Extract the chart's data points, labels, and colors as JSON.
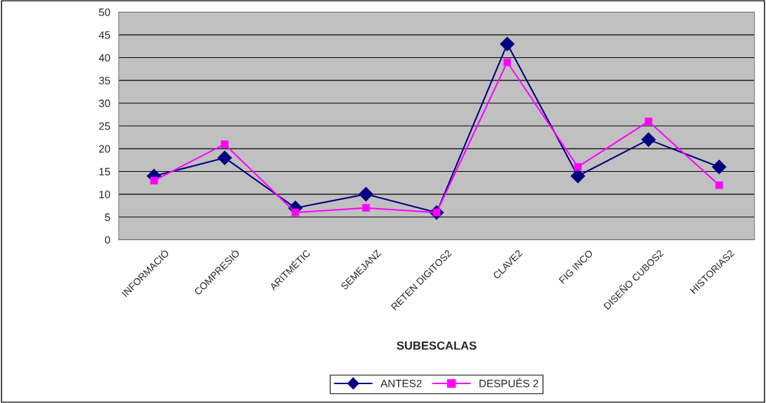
{
  "chart_data": {
    "type": "line",
    "xlabel": "SUBESCALAS",
    "categories": [
      "INFORMACIÓ",
      "COMPRESIÓ",
      "ARITMÉTIC",
      "SEMEJANZ",
      "RETEN DIGITOS2",
      "CLAVE2",
      "FIG INCO",
      "DISEÑO CUBOS2",
      "HISTORIAS2"
    ],
    "series": [
      {
        "name": "ANTES2",
        "color": "#000080",
        "marker": "diamond",
        "values": [
          14,
          18,
          7,
          10,
          6,
          43,
          14,
          22,
          16
        ]
      },
      {
        "name": "DESPUÉS 2",
        "color": "#ff00ff",
        "marker": "square",
        "values": [
          13,
          21,
          6,
          7,
          6,
          39,
          16,
          26,
          12
        ]
      }
    ],
    "ylim": [
      0,
      50
    ],
    "yticks": [
      0,
      5,
      10,
      15,
      20,
      25,
      30,
      35,
      40,
      45,
      50
    ],
    "grid": "y",
    "legend": "bottom"
  }
}
